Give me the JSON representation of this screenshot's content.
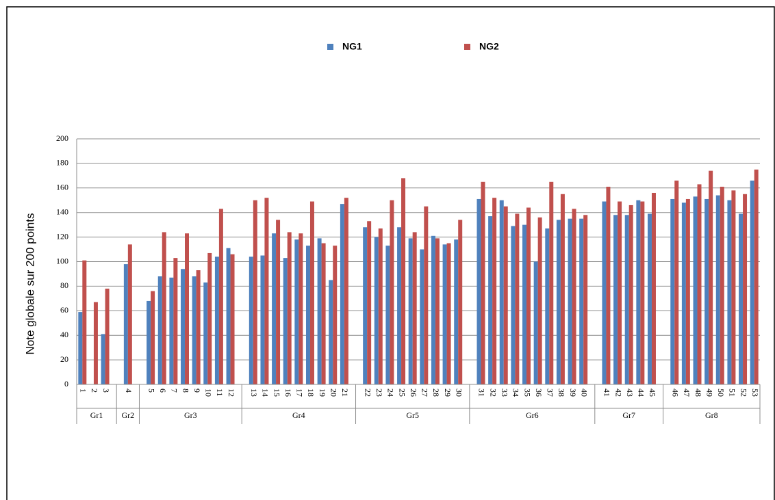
{
  "chart_data": {
    "type": "bar",
    "ylabel": "Note globale sur 200 points",
    "ylim": [
      0,
      200
    ],
    "yticks": [
      0,
      20,
      40,
      60,
      80,
      100,
      120,
      140,
      160,
      180,
      200
    ],
    "grid": true,
    "groups": [
      {
        "name": "Gr1",
        "categories": [
          "1",
          "2",
          "3"
        ]
      },
      {
        "name": "Gr2",
        "categories": [
          "4"
        ]
      },
      {
        "name": "Gr3",
        "categories": [
          "5",
          "6",
          "7",
          "8",
          "9",
          "10",
          "11",
          "12"
        ]
      },
      {
        "name": "Gr4",
        "categories": [
          "13",
          "14",
          "15",
          "16",
          "17",
          "18",
          "19",
          "20",
          "21"
        ]
      },
      {
        "name": "Gr5",
        "categories": [
          "22",
          "23",
          "24",
          "25",
          "26",
          "27",
          "28",
          "29",
          "30"
        ]
      },
      {
        "name": "Gr6",
        "categories": [
          "31",
          "32",
          "33",
          "34",
          "35",
          "36",
          "37",
          "38",
          "39",
          "40"
        ]
      },
      {
        "name": "Gr7",
        "categories": [
          "41",
          "42",
          "43",
          "44",
          "45"
        ]
      },
      {
        "name": "Gr8",
        "categories": [
          "46",
          "47",
          "48",
          "49",
          "50",
          "51",
          "52",
          "53"
        ]
      }
    ],
    "series": [
      {
        "name": "NG1",
        "color": "#4f81bd",
        "values": [
          [
            59,
            0,
            41
          ],
          [
            98
          ],
          [
            68,
            88,
            87,
            94,
            88,
            83,
            104,
            111
          ],
          [
            104,
            105,
            123,
            103,
            118,
            113,
            119,
            85,
            147
          ],
          [
            128,
            120,
            113,
            128,
            119,
            110,
            121,
            114,
            118
          ],
          [
            151,
            137,
            150,
            129,
            130,
            100,
            127,
            134,
            135,
            135
          ],
          [
            149,
            138,
            138,
            150,
            139
          ],
          [
            151,
            148,
            153,
            151,
            154,
            150,
            139,
            166
          ]
        ]
      },
      {
        "name": "NG2",
        "color": "#c0504d",
        "values": [
          [
            101,
            67,
            78
          ],
          [
            114
          ],
          [
            76,
            124,
            103,
            123,
            93,
            107,
            143,
            106
          ],
          [
            150,
            152,
            134,
            124,
            123,
            149,
            115,
            113,
            152
          ],
          [
            133,
            127,
            150,
            168,
            124,
            145,
            119,
            115,
            134
          ],
          [
            165,
            152,
            145,
            139,
            144,
            136,
            165,
            155,
            143,
            138
          ],
          [
            161,
            149,
            146,
            149,
            156
          ],
          [
            166,
            151,
            163,
            174,
            161,
            158,
            155,
            175
          ]
        ]
      }
    ]
  }
}
